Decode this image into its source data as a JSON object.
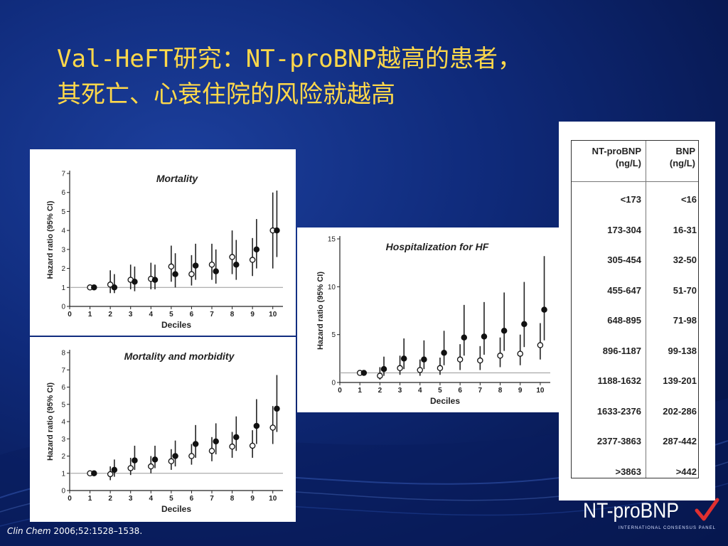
{
  "slide": {
    "title_line1": "Val-HeFT研究：NT-proBNP越高的患者，",
    "title_line2": "其死亡、心衰住院的风险就越高",
    "citation_journal": "Clin Chem",
    "citation_ref": " 2006;52:1528–1538.",
    "logo_text": "NT-proBNP",
    "logo_subtext": "INTERNATIONAL CONSENSUS PANEL",
    "colors": {
      "title": "#ffd84a",
      "background": "#0f2a7a",
      "logo_check": "#e03030"
    }
  },
  "table": {
    "headers": [
      [
        "NT-proBNP",
        "(ng/L)"
      ],
      [
        "BNP",
        "(ng/L)"
      ]
    ],
    "rows": [
      [
        "<173",
        "<16"
      ],
      [
        "173-304",
        "16-31"
      ],
      [
        "305-454",
        "32-50"
      ],
      [
        "455-647",
        "51-70"
      ],
      [
        "648-895",
        "71-98"
      ],
      [
        "896-1187",
        "99-138"
      ],
      [
        "1188-1632",
        "139-201"
      ],
      [
        "1633-2376",
        "202-286"
      ],
      [
        "2377-3863",
        "287-442"
      ],
      [
        ">3863",
        ">442"
      ]
    ]
  },
  "chart_data": [
    {
      "type": "scatter",
      "title": "Mortality",
      "xlabel": "Deciles",
      "ylabel": "Hazard ratio (95% CI)",
      "xlim": [
        0,
        10.5
      ],
      "ylim": [
        0,
        7
      ],
      "xticks": [
        0,
        1,
        2,
        3,
        4,
        5,
        6,
        7,
        8,
        9,
        10
      ],
      "yticks": [
        0,
        1,
        2,
        3,
        4,
        5,
        6,
        7
      ],
      "reference_line": 1,
      "series": [
        {
          "marker": "open",
          "x": [
            1,
            2,
            3,
            4,
            5,
            6,
            7,
            8,
            9,
            10
          ],
          "y": [
            1.0,
            1.15,
            1.4,
            1.45,
            2.1,
            1.7,
            2.2,
            2.6,
            2.45,
            4.0
          ],
          "lo": [
            1.0,
            0.7,
            0.9,
            0.9,
            1.3,
            1.1,
            1.4,
            1.7,
            1.6,
            2.0
          ],
          "hi": [
            1.0,
            1.9,
            2.2,
            2.3,
            3.2,
            2.7,
            3.3,
            4.0,
            3.6,
            6.0
          ]
        },
        {
          "marker": "filled",
          "x": [
            1.2,
            2.2,
            3.2,
            4.2,
            5.2,
            6.2,
            7.2,
            8.2,
            9.2,
            10.2
          ],
          "y": [
            1.0,
            1.0,
            1.3,
            1.4,
            1.7,
            2.15,
            1.85,
            2.2,
            3.0,
            4.0
          ],
          "lo": [
            1.0,
            0.7,
            0.8,
            0.9,
            1.0,
            1.4,
            1.2,
            1.4,
            2.0,
            2.6
          ],
          "hi": [
            1.0,
            1.7,
            2.1,
            2.2,
            2.8,
            3.3,
            3.0,
            3.5,
            4.6,
            6.1
          ]
        }
      ]
    },
    {
      "type": "scatter",
      "title": "Mortality and morbidity",
      "xlabel": "Deciles",
      "ylabel": "Hazard ratio (95% CI)",
      "xlim": [
        0,
        10.5
      ],
      "ylim": [
        0,
        8
      ],
      "xticks": [
        0,
        1,
        2,
        3,
        4,
        5,
        6,
        7,
        8,
        9,
        10
      ],
      "yticks": [
        0,
        1,
        2,
        3,
        4,
        5,
        6,
        7,
        8
      ],
      "reference_line": 1,
      "series": [
        {
          "marker": "open",
          "x": [
            1,
            2,
            3,
            4,
            5,
            6,
            7,
            8,
            9,
            10
          ],
          "y": [
            1.0,
            0.95,
            1.3,
            1.4,
            1.7,
            2.0,
            2.3,
            2.55,
            2.6,
            3.65
          ],
          "lo": [
            1.0,
            0.6,
            0.9,
            1.0,
            1.2,
            1.5,
            1.7,
            1.9,
            1.9,
            2.7
          ],
          "hi": [
            1.0,
            1.4,
            1.9,
            2.0,
            2.4,
            2.7,
            3.1,
            3.4,
            3.5,
            4.9
          ]
        },
        {
          "marker": "filled",
          "x": [
            1.2,
            2.2,
            3.2,
            4.2,
            5.2,
            6.2,
            7.2,
            8.2,
            9.2,
            10.2
          ],
          "y": [
            1.0,
            1.2,
            1.75,
            1.8,
            2.0,
            2.7,
            2.85,
            3.1,
            3.75,
            4.75
          ],
          "lo": [
            1.0,
            0.8,
            1.2,
            1.3,
            1.4,
            1.9,
            2.1,
            2.3,
            2.7,
            3.4
          ],
          "hi": [
            1.0,
            1.8,
            2.6,
            2.6,
            2.9,
            3.8,
            3.9,
            4.3,
            5.3,
            6.7
          ]
        }
      ]
    },
    {
      "type": "scatter",
      "title": "Hospitalization for HF",
      "xlabel": "Deciles",
      "ylabel": "Hazard ratio (95% CI)",
      "xlim": [
        0,
        10.5
      ],
      "ylim": [
        0,
        15
      ],
      "xticks": [
        0,
        1,
        2,
        3,
        4,
        5,
        6,
        7,
        8,
        9,
        10
      ],
      "yticks": [
        0,
        5,
        10,
        15
      ],
      "reference_line": 1,
      "series": [
        {
          "marker": "open",
          "x": [
            1,
            2,
            3,
            4,
            5,
            6,
            7,
            8,
            9,
            10
          ],
          "y": [
            1.0,
            0.7,
            1.5,
            1.3,
            1.5,
            2.4,
            2.3,
            2.8,
            3.0,
            3.9
          ],
          "lo": [
            1.0,
            0.3,
            0.8,
            0.7,
            0.8,
            1.3,
            1.3,
            1.6,
            1.8,
            2.4
          ],
          "hi": [
            1.0,
            1.6,
            2.8,
            2.4,
            2.6,
            4.0,
            3.8,
            4.7,
            5.0,
            6.2
          ]
        },
        {
          "marker": "filled",
          "x": [
            1.2,
            2.2,
            3.2,
            4.2,
            5.2,
            6.2,
            7.2,
            8.2,
            9.2,
            10.2
          ],
          "y": [
            1.0,
            1.4,
            2.5,
            2.4,
            3.1,
            4.7,
            4.8,
            5.4,
            6.1,
            7.6
          ],
          "lo": [
            1.0,
            0.7,
            1.4,
            1.4,
            1.8,
            2.8,
            2.9,
            3.3,
            3.7,
            4.4
          ],
          "hi": [
            1.0,
            2.7,
            4.6,
            4.4,
            5.4,
            8.1,
            8.4,
            9.4,
            10.5,
            13.2
          ]
        }
      ]
    }
  ]
}
